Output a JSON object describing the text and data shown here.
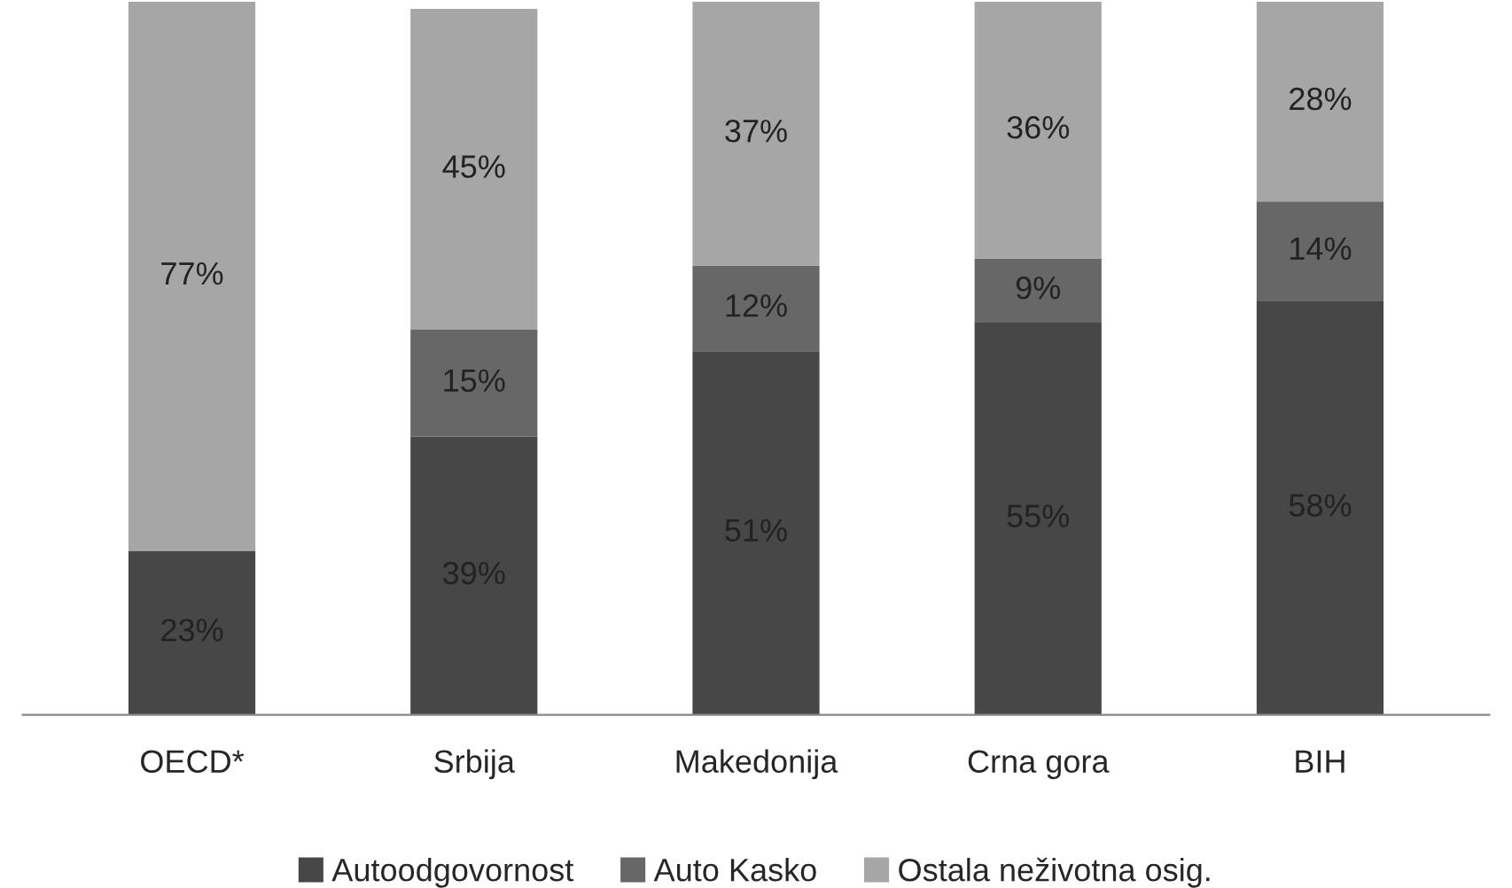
{
  "chart_data": {
    "type": "bar",
    "stacked": true,
    "legend": "bottom",
    "grid": false,
    "categories": [
      "OECD*",
      "Srbija",
      "Makedonija",
      "Crna gora",
      "BIH"
    ],
    "series": [
      {
        "name": "Autoodgovornost",
        "color": "#474747",
        "values": [
          23,
          39,
          51,
          55,
          58
        ],
        "value_labels": [
          "23%",
          "39%",
          "51%",
          "55%",
          "58%"
        ]
      },
      {
        "name": "Auto Kasko",
        "color": "#676767",
        "values": [
          null,
          15,
          12,
          9,
          14
        ],
        "value_labels": [
          null,
          "15%",
          "12%",
          "9%",
          "14%"
        ]
      },
      {
        "name": "Ostala neživotna osig.",
        "color": "#a6a6a6",
        "values": [
          77,
          45,
          37,
          36,
          28
        ],
        "value_labels": [
          "77%",
          "45%",
          "37%",
          "36%",
          "28%"
        ]
      }
    ]
  }
}
